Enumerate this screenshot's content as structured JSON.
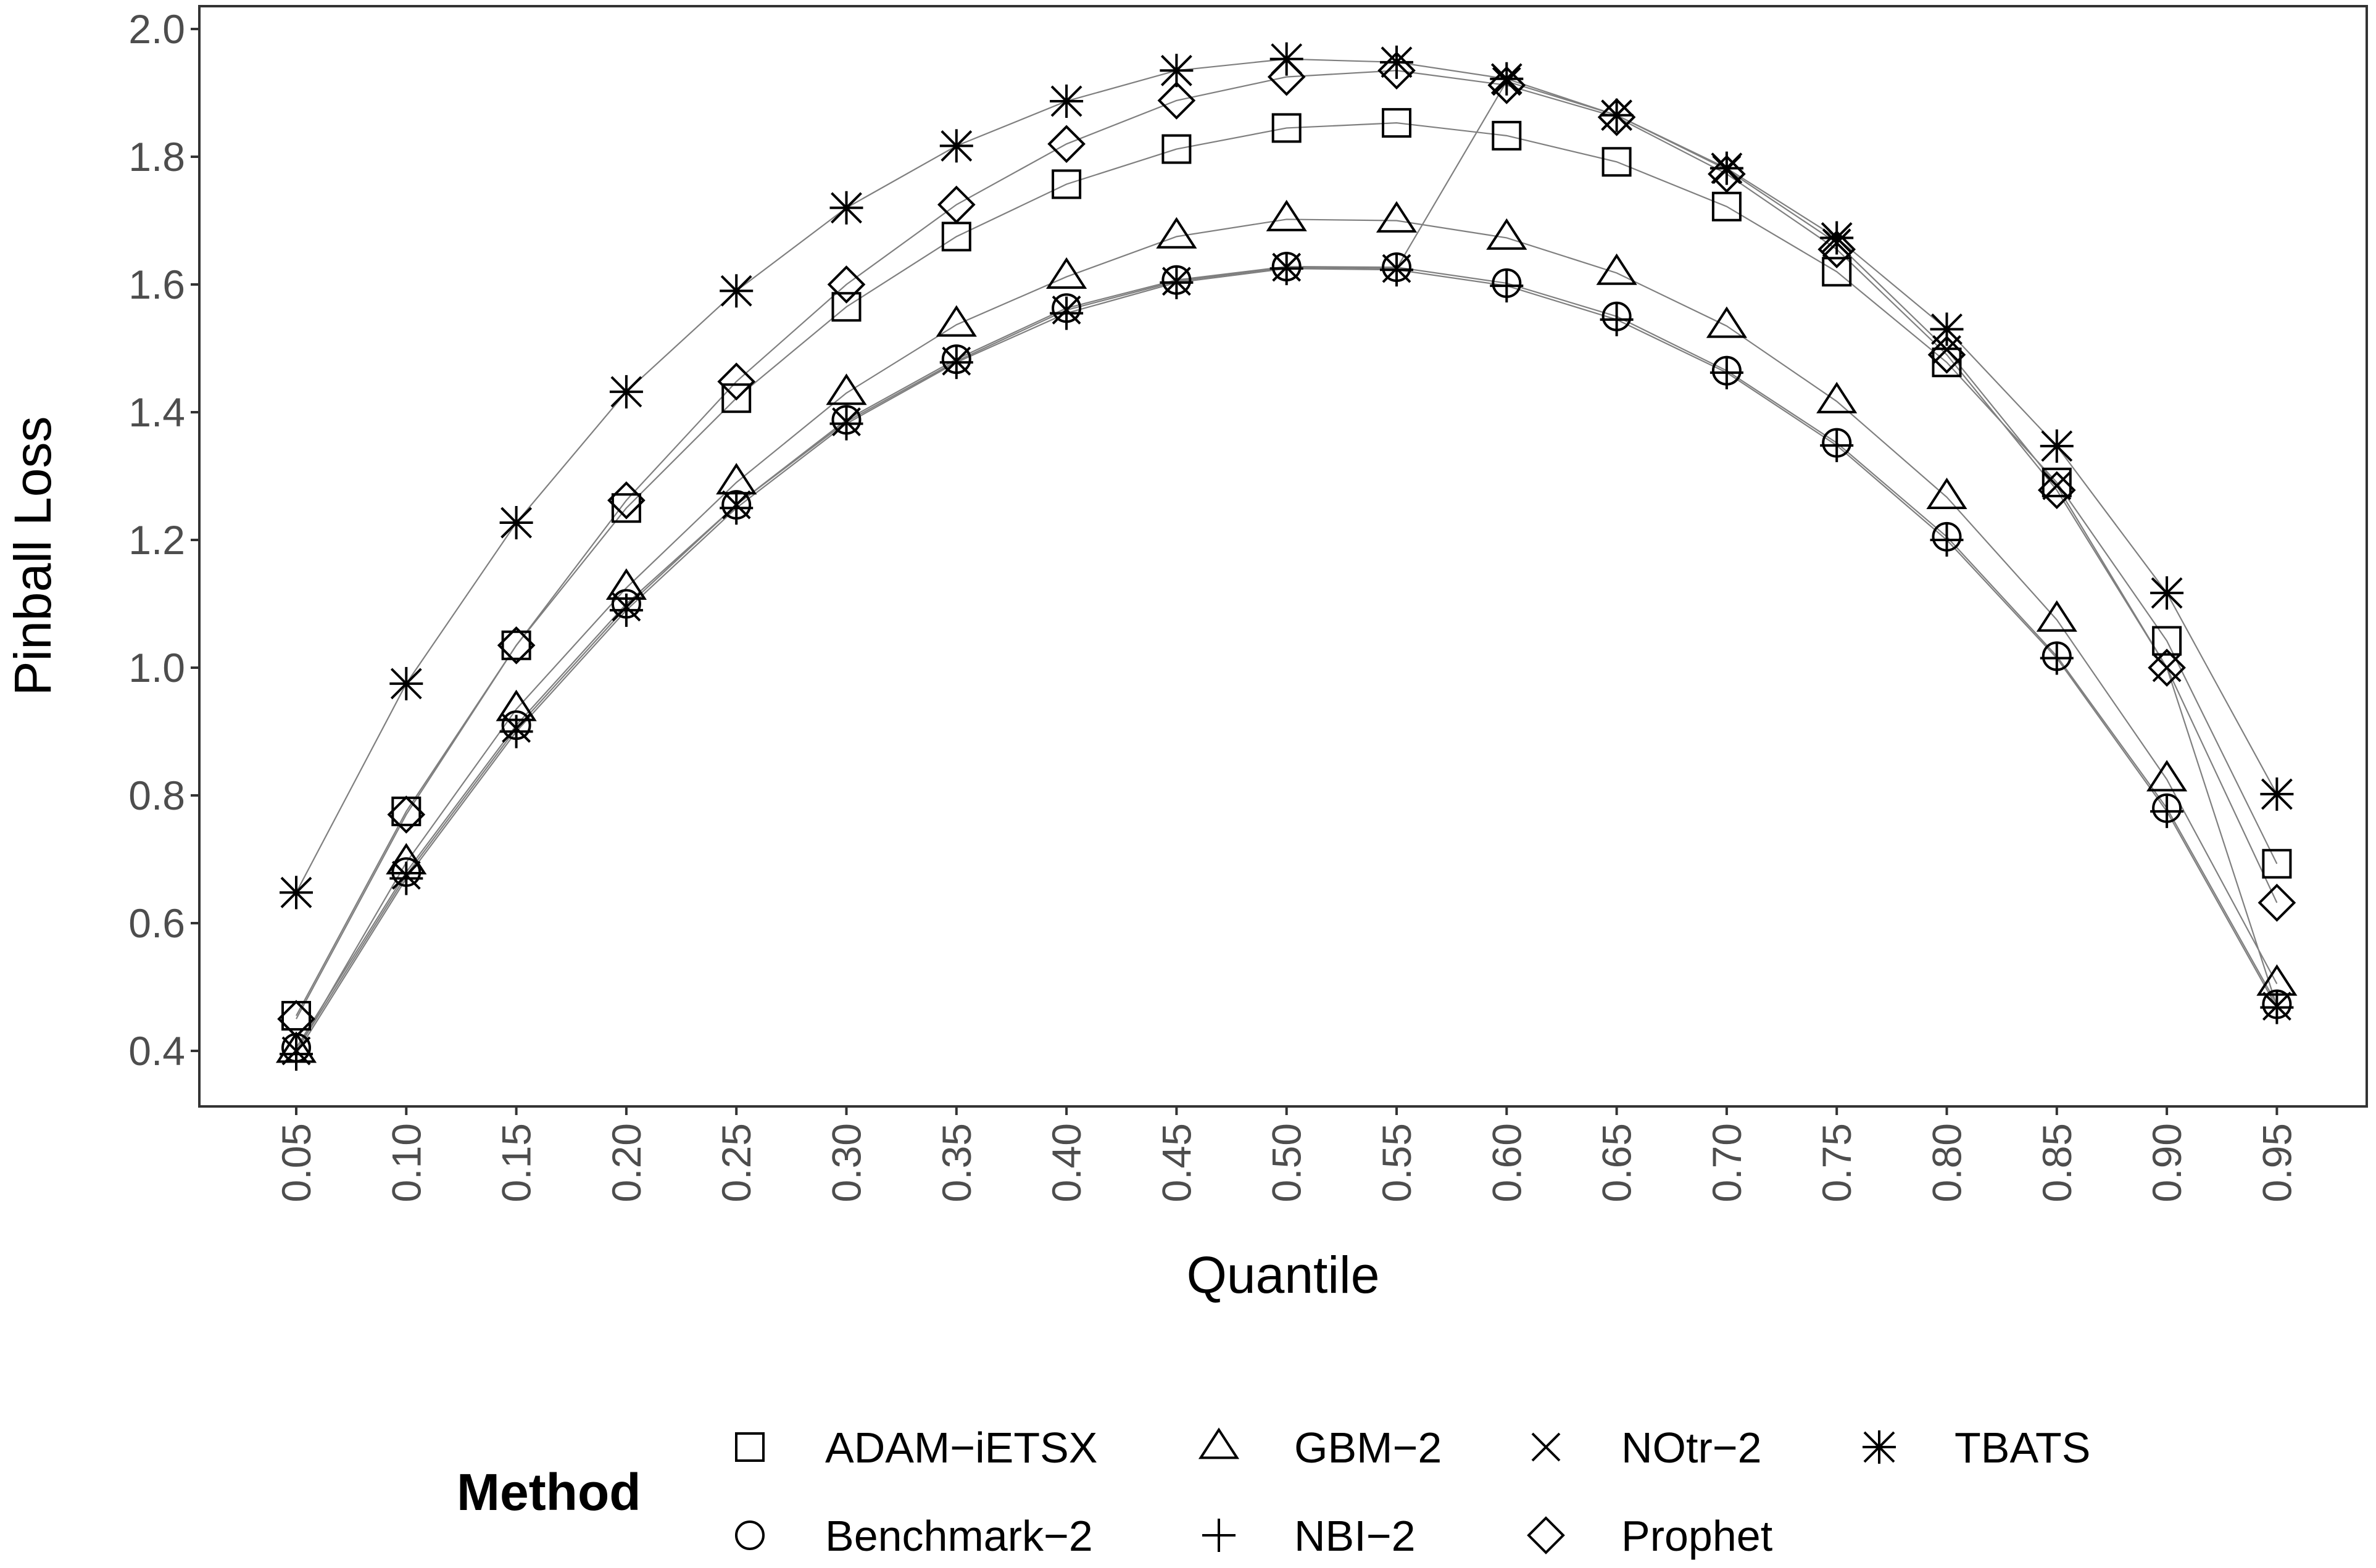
{
  "chart_data": {
    "type": "line",
    "title": "",
    "xlabel": "Quantile",
    "ylabel": "Pinball Loss",
    "x": [
      0.05,
      0.1,
      0.15,
      0.2,
      0.25,
      0.3,
      0.35,
      0.4,
      0.45,
      0.5,
      0.55,
      0.6,
      0.65,
      0.7,
      0.75,
      0.8,
      0.85,
      0.9,
      0.95
    ],
    "x_tick_labels": [
      "0.05",
      "0.10",
      "0.15",
      "0.20",
      "0.25",
      "0.30",
      "0.35",
      "0.40",
      "0.45",
      "0.50",
      "0.55",
      "0.60",
      "0.65",
      "0.70",
      "0.75",
      "0.80",
      "0.85",
      "0.90",
      "0.95"
    ],
    "yticks": [
      0.4,
      0.6,
      0.8,
      1.0,
      1.2,
      1.4,
      1.6,
      1.8,
      2.0
    ],
    "y_tick_labels": [
      "0.4",
      "0.6",
      "0.8",
      "1.0",
      "1.2",
      "1.4",
      "1.6",
      "1.8",
      "2.0"
    ],
    "ylim": [
      0.33,
      2.03
    ],
    "grid": false,
    "legend": {
      "title": "Method",
      "position": "bottom"
    },
    "series": [
      {
        "name": "ADAM−iETSX",
        "marker": "square",
        "values": [
          0.455,
          0.775,
          1.035,
          1.25,
          1.422,
          1.565,
          1.675,
          1.757,
          1.812,
          1.845,
          1.853,
          1.833,
          1.792,
          1.722,
          1.62,
          1.478,
          1.29,
          1.042,
          0.693
        ]
      },
      {
        "name": "Benchmark−2",
        "marker": "circle",
        "values": [
          0.405,
          0.68,
          0.91,
          1.1,
          1.255,
          1.388,
          1.483,
          1.563,
          1.607,
          1.628,
          1.627,
          1.602,
          1.55,
          1.465,
          1.352,
          1.205,
          1.018,
          0.78,
          0.473
        ]
      },
      {
        "name": "GBM−2",
        "marker": "triangle",
        "values": [
          0.4,
          0.695,
          0.935,
          1.125,
          1.29,
          1.43,
          1.537,
          1.612,
          1.675,
          1.702,
          1.7,
          1.673,
          1.618,
          1.535,
          1.417,
          1.267,
          1.075,
          0.825,
          0.505
        ]
      },
      {
        "name": "NBI−2",
        "marker": "plus",
        "values": [
          0.395,
          0.67,
          0.9,
          1.09,
          1.25,
          1.382,
          1.478,
          1.555,
          1.603,
          1.625,
          1.623,
          1.598,
          1.545,
          1.462,
          1.348,
          1.2,
          1.015,
          0.775,
          0.468
        ]
      },
      {
        "name": "NOtr−2",
        "marker": "cross",
        "values": [
          0.4,
          0.675,
          0.905,
          1.095,
          1.255,
          1.385,
          1.48,
          1.56,
          1.605,
          1.627,
          1.625,
          1.918,
          1.865,
          1.78,
          1.665,
          1.498,
          1.285,
          1.0,
          0.47
        ]
      },
      {
        "name": "Prophet",
        "marker": "diamond",
        "values": [
          0.45,
          0.77,
          1.035,
          1.262,
          1.448,
          1.6,
          1.725,
          1.82,
          1.888,
          1.925,
          1.935,
          1.912,
          1.862,
          1.773,
          1.655,
          1.49,
          1.278,
          1.0,
          0.632
        ]
      },
      {
        "name": "TBATS",
        "marker": "asterisk",
        "values": [
          0.648,
          0.975,
          1.227,
          1.432,
          1.59,
          1.72,
          1.817,
          1.887,
          1.935,
          1.953,
          1.948,
          1.922,
          1.865,
          1.782,
          1.673,
          1.53,
          1.347,
          1.117,
          0.802
        ]
      }
    ]
  }
}
